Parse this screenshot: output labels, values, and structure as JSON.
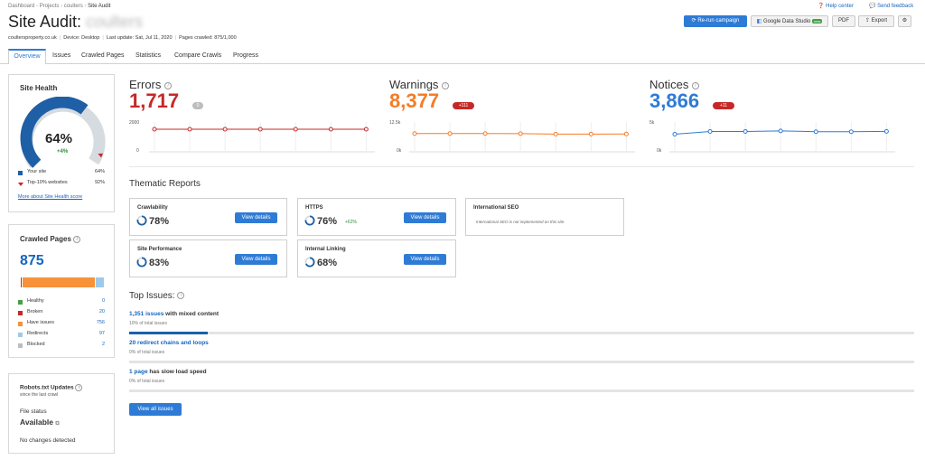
{
  "breadcrumb": [
    "Dashboard",
    "Projects",
    "coulters",
    "Site Audit"
  ],
  "header_links": {
    "help": "Help center",
    "feedback": "Send feedback"
  },
  "title": "Site Audit:",
  "title_project": "coulters",
  "meta": {
    "domain": "coultersproperty.co.uk",
    "device": "Device: Desktop",
    "last_update": "Last update: Sat, Jul 11, 2020",
    "pages_crawled": "Pages crawled: 875/1,000"
  },
  "toolbar": {
    "rerun": "Re-run campaign",
    "gds": "Google Data Studio",
    "gds_badge": "new",
    "pdf": "PDF",
    "export": "Export"
  },
  "tabs": [
    "Overview",
    "Issues",
    "Crawled Pages",
    "Statistics",
    "Compare Crawls",
    "Progress"
  ],
  "site_health": {
    "title": "Site Health",
    "score": "64%",
    "score_value": 64,
    "top10_value": 92,
    "delta": "+4%",
    "legend": [
      {
        "label": "Your site",
        "value": "64%",
        "color": "#1f5fa6"
      },
      {
        "label": "Top-10% websites",
        "value": "92%",
        "color": "#c62828"
      }
    ],
    "more": "More about Site Health score"
  },
  "crawled_pages": {
    "title": "Crawled Pages",
    "total": "875",
    "items": [
      {
        "label": "Healthy",
        "value": "0",
        "num": 0,
        "color": "#43a047"
      },
      {
        "label": "Broken",
        "value": "20",
        "num": 20,
        "color": "#c62828"
      },
      {
        "label": "Have issues",
        "value": "756",
        "num": 756,
        "color": "#f7923a"
      },
      {
        "label": "Redirects",
        "value": "97",
        "num": 97,
        "color": "#9ec9ec"
      },
      {
        "label": "Blocked",
        "value": "2",
        "num": 2,
        "color": "#bdbdbd"
      }
    ]
  },
  "robots": {
    "title": "Robots.txt Updates",
    "subtitle": "since the last crawl",
    "status_label": "File status",
    "status_value": "Available",
    "changes": "No changes detected"
  },
  "metrics": [
    {
      "title": "Errors",
      "value": "1,717",
      "badge": "0",
      "color": "#c62828",
      "badge_color": "#bdbdbd",
      "axis_top": "2000",
      "axis_bottom": "0",
      "axis_max": 2000,
      "points": [
        1717,
        1717,
        1717,
        1717,
        1717,
        1717,
        1717
      ],
      "line_color": "#c62828"
    },
    {
      "title": "Warnings",
      "value": "8,377",
      "badge": "+111",
      "color": "#f57c26",
      "badge_color": "#c62828",
      "axis_top": "12.5k",
      "axis_bottom": "0k",
      "axis_max": 12500,
      "points": [
        8600,
        8600,
        8600,
        8550,
        8300,
        8300,
        8377
      ],
      "line_color": "#f57c26"
    },
    {
      "title": "Notices",
      "value": "3,866",
      "badge": "+11",
      "color": "#2e7bd6",
      "badge_color": "#c62828",
      "axis_top": "5k",
      "axis_bottom": "0k",
      "axis_max": 5000,
      "points": [
        3300,
        3850,
        3850,
        3950,
        3800,
        3800,
        3866
      ],
      "line_color": "#2e7bd6"
    }
  ],
  "thematic": {
    "title": "Thematic Reports",
    "view_details": "View details",
    "cards": [
      {
        "title": "Crawlability",
        "value": "78%",
        "num": 78,
        "delta": ""
      },
      {
        "title": "HTTPS",
        "value": "76%",
        "num": 76,
        "delta": "+62%"
      },
      {
        "title": "International SEO",
        "message": "International SEO is not implemented on this site."
      },
      {
        "title": "Site Performance",
        "value": "83%",
        "num": 83,
        "delta": ""
      },
      {
        "title": "Internal Linking",
        "value": "68%",
        "num": 68,
        "delta": ""
      }
    ]
  },
  "top_issues": {
    "title": "Top Issues:",
    "items": [
      {
        "link": "1,351 issues",
        "rest": " with mixed content",
        "sub": "10% of total issues",
        "pct": 10
      },
      {
        "link": "20 redirect chains and loops",
        "rest": "",
        "sub": "0% of total issues",
        "pct": 0
      },
      {
        "link": "1 page",
        "rest": " has slow load speed",
        "sub": "0% of total issues",
        "pct": 0
      }
    ],
    "view_all": "View all issues"
  }
}
